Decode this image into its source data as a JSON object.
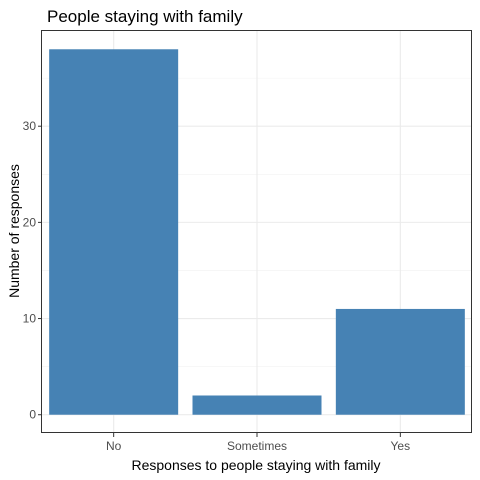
{
  "chart_data": {
    "type": "bar",
    "title": "People staying with family",
    "xlabel": "Responses to people staying with family",
    "ylabel": "Number of responses",
    "categories": [
      "No",
      "Sometimes",
      "Yes"
    ],
    "values": [
      38,
      2,
      11
    ],
    "ylim": [
      -1.9,
      39.9
    ],
    "yticks": [
      0,
      10,
      20,
      30
    ],
    "bar_color": "#4682B4",
    "grid": true,
    "legend": "none"
  }
}
